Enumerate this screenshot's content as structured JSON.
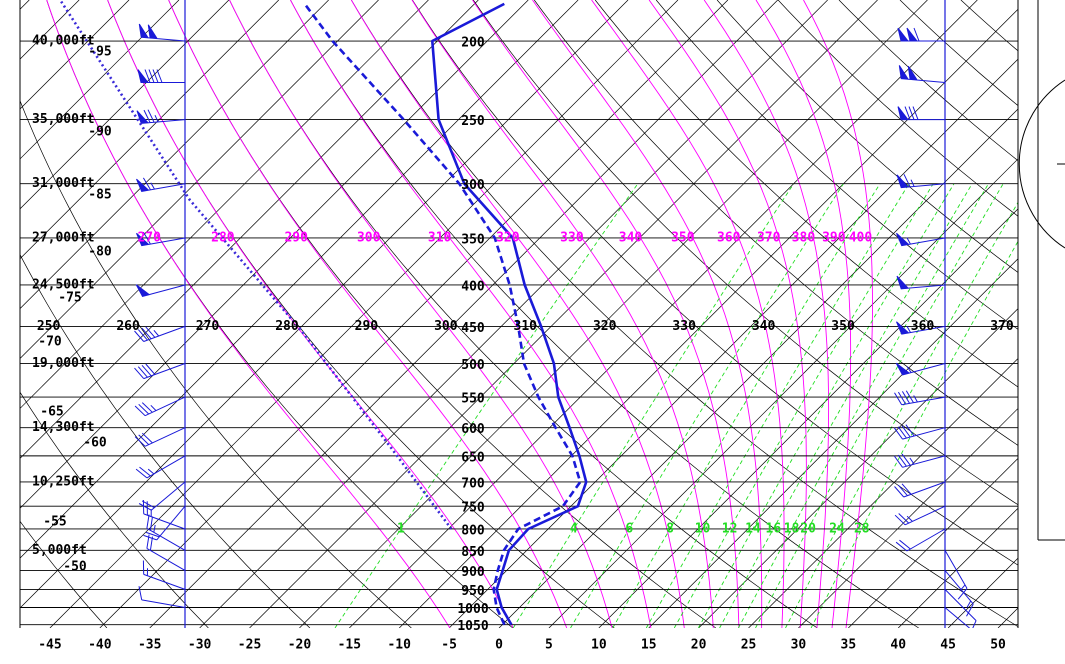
{
  "chart_data": {
    "type": "skew-t",
    "ylog": true,
    "ylim": [
      1060,
      178
    ],
    "yticks": [
      200,
      250,
      300,
      350,
      400,
      450,
      500,
      550,
      600,
      650,
      700,
      750,
      800,
      850,
      900,
      950,
      1000,
      1050
    ],
    "xlim": [
      -48,
      52
    ],
    "xticks": [
      -45,
      -40,
      -35,
      -30,
      -25,
      -20,
      -15,
      -10,
      -5,
      0,
      5,
      10,
      15,
      20,
      25,
      30,
      35,
      40,
      45,
      50
    ],
    "height_labels": [
      "40,000ft",
      "35,000ft",
      "31,000ft",
      "27,000ft",
      "24,500ft",
      "19,000ft",
      "14,300ft",
      "10,250ft",
      "5,000ft"
    ],
    "isotherm_labels": [
      -95,
      -90,
      -85,
      -80,
      -75,
      -70,
      -65,
      -60,
      -55,
      -50
    ],
    "dry_adiabat_labels": [
      250,
      260,
      270,
      280,
      290,
      300,
      310,
      320,
      330,
      340,
      350,
      360,
      370
    ],
    "dry_adiabat_color": "#000000",
    "moist_adiabat_labels": [
      270,
      280,
      290,
      300,
      310,
      320,
      330,
      340,
      350,
      360,
      370,
      380,
      390,
      400
    ],
    "moist_adiabat_color": "#ff00ff",
    "mixing_ratio_labels": [
      1,
      4,
      6,
      8,
      10,
      12,
      14,
      16,
      18,
      20,
      24,
      28
    ],
    "mixing_ratio_color": "#22dd22",
    "series": [
      {
        "color": "#1a1ad8",
        "style": "solid",
        "pressure": [
          1050,
          1000,
          950,
          900,
          850,
          800,
          750,
          700,
          650,
          600,
          550,
          500,
          450,
          400,
          350,
          300,
          250,
          200,
          180
        ],
        "values": [
          0.9,
          -1.8,
          -4.1,
          -5.4,
          -6.8,
          -7.0,
          -4.3,
          -5.9,
          -9.2,
          -13.0,
          -17.2,
          -21.0,
          -26.0,
          -31.8,
          -37.7,
          -48.0,
          -57.0,
          -65.5,
          -62.0
        ]
      },
      {
        "color": "#1a1ad8",
        "style": "dashed",
        "pressure": [
          1050,
          1000,
          950,
          900,
          850,
          800,
          750,
          700,
          650,
          600,
          550,
          500,
          450,
          400,
          350,
          300,
          250,
          200,
          180
        ],
        "values": [
          0.2,
          -2.3,
          -4.4,
          -5.9,
          -7.3,
          -8.0,
          -5.8,
          -6.5,
          -9.9,
          -14.4,
          -19.2,
          -24.0,
          -28.3,
          -33.3,
          -39.5,
          -48.5,
          -60.5,
          -75.5,
          -82.0
        ]
      },
      {
        "color": "#3a2ad8",
        "style": "dotted",
        "pressure": [
          800,
          636,
          454,
          314,
          178
        ],
        "values": [
          -14.7,
          -28.8,
          -49.8,
          -73.9,
          -106.9
        ]
      }
    ],
    "wind_color": "#1a1ad8",
    "winds": [
      {
        "pressure": [
          200,
          225,
          250,
          300,
          350,
          400,
          450,
          500,
          550,
          600,
          650,
          700,
          750,
          800,
          850,
          900,
          950,
          1000
        ],
        "speed": [
          100,
          90,
          75,
          65,
          60,
          50,
          45,
          40,
          35,
          30,
          25,
          20,
          20,
          25,
          25,
          20,
          15,
          10
        ],
        "direction": [
          275,
          270,
          265,
          260,
          260,
          255,
          250,
          250,
          245,
          245,
          240,
          230,
          220,
          290,
          300,
          300,
          290,
          280
        ]
      },
      {
        "pressure": [
          200,
          225,
          250,
          300,
          350,
          400,
          450,
          500,
          550,
          600,
          650,
          700,
          750,
          800,
          850,
          900,
          950,
          1000
        ],
        "speed": [
          110,
          100,
          80,
          65,
          55,
          50,
          55,
          55,
          45,
          40,
          35,
          30,
          25,
          20,
          15,
          15,
          10,
          10
        ],
        "direction": [
          270,
          275,
          270,
          265,
          260,
          265,
          260,
          255,
          260,
          255,
          255,
          250,
          245,
          240,
          150,
          140,
          135,
          130
        ]
      }
    ]
  }
}
